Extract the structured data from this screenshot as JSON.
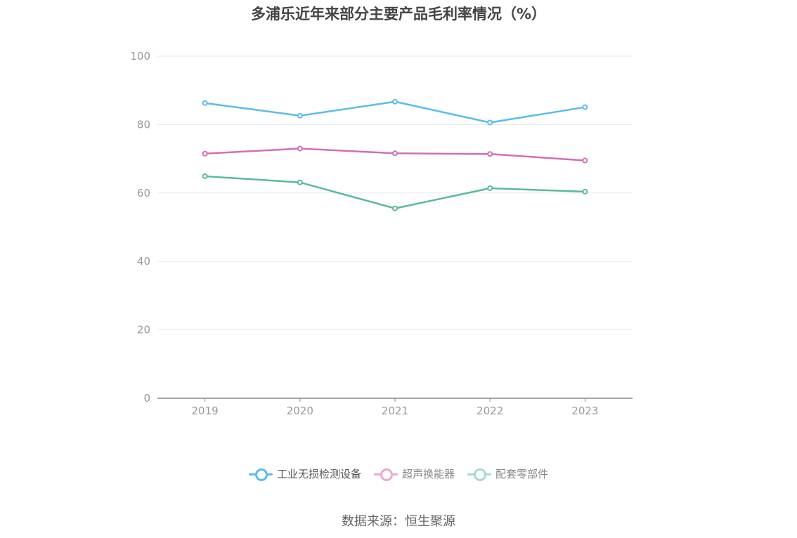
{
  "chart_data": {
    "type": "line",
    "title": "多浦乐近年来部分主要产品毛利率情况（%）",
    "categories": [
      "2019",
      "2020",
      "2021",
      "2022",
      "2023"
    ],
    "series": [
      {
        "name": "工业无损检测设备",
        "color": "#5bbcec",
        "values": [
          86.3,
          82.6,
          86.7,
          80.6,
          85.1
        ]
      },
      {
        "name": "超声换能器",
        "color": "#d26fb5",
        "values": [
          71.5,
          73.0,
          71.6,
          71.4,
          69.5
        ]
      },
      {
        "name": "配套零部件",
        "color": "#5ab9a0",
        "values": [
          64.9,
          63.1,
          55.5,
          61.4,
          60.4
        ]
      }
    ],
    "ylim": [
      0,
      100
    ],
    "yticks": [
      0,
      20,
      40,
      60,
      80,
      100
    ],
    "grid": true,
    "legend_position": "bottom",
    "legend_colors": [
      "#5bbcec",
      "#f0a6cf",
      "#a3dccb"
    ],
    "source": "数据来源：恒生聚源"
  }
}
